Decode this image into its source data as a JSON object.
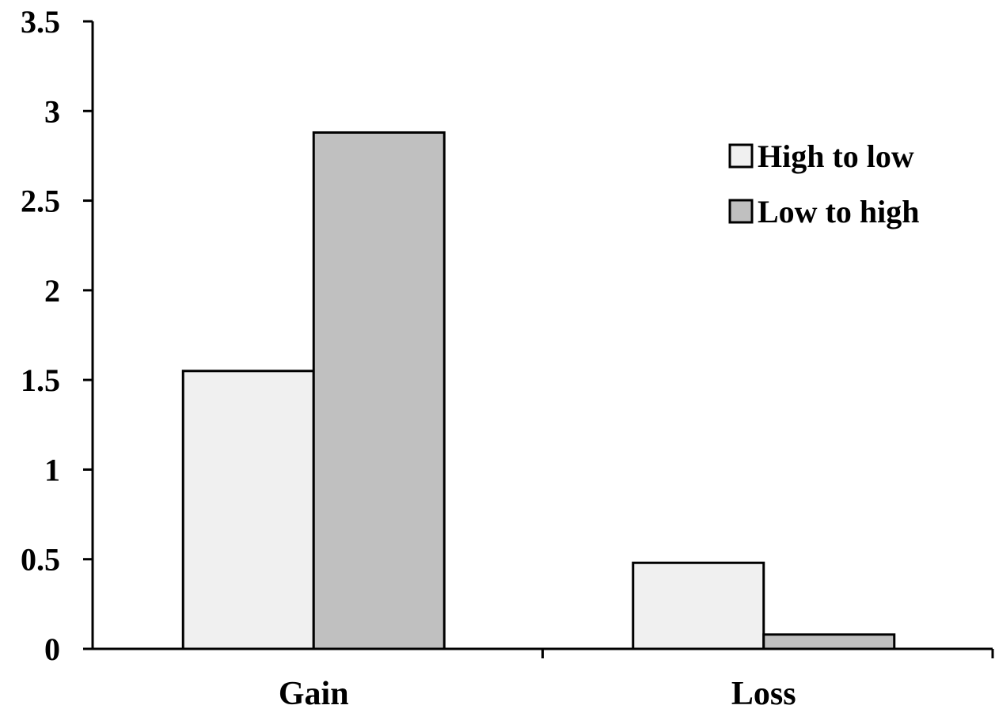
{
  "chart_data": {
    "type": "bar",
    "categories": [
      "Gain",
      "Loss"
    ],
    "series": [
      {
        "name": "High to low",
        "values": [
          1.55,
          0.48
        ],
        "color": "#f0f0f0"
      },
      {
        "name": "Low to high",
        "values": [
          2.88,
          0.08
        ],
        "color": "#c0c0c0"
      }
    ],
    "title": "",
    "xlabel": "",
    "ylabel": "",
    "ylim": [
      0,
      3.5
    ],
    "yticks": [
      "0",
      "0.5",
      "1",
      "1.5",
      "2",
      "2.5",
      "3",
      "3.5"
    ],
    "grid": false,
    "legend_position": "top-right"
  }
}
